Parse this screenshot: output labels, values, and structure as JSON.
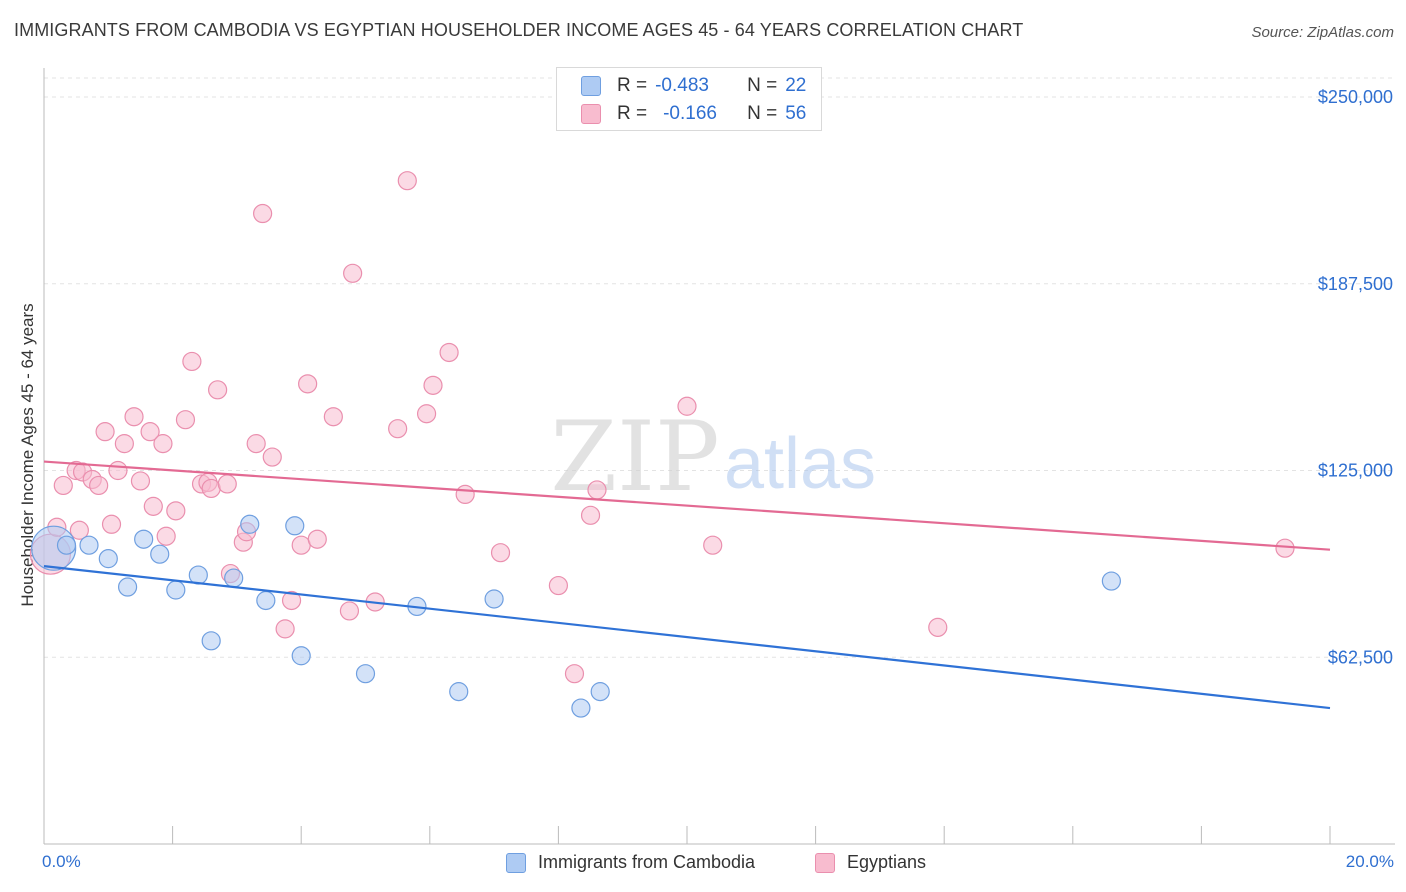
{
  "title": "IMMIGRANTS FROM CAMBODIA VS EGYPTIAN HOUSEHOLDER INCOME AGES 45 - 64 YEARS CORRELATION CHART",
  "source": "Source: ZipAtlas.com",
  "watermark": {
    "zip": "ZIP",
    "atlas": "atlas"
  },
  "legend_top": {
    "rows": [
      {
        "r_label": "R =",
        "r_value": "-0.483",
        "n_label": "N =",
        "n_value": "22"
      },
      {
        "r_label": "R =",
        "r_value": "-0.166",
        "n_label": "N =",
        "n_value": "56"
      }
    ]
  },
  "bottom_legend": {
    "series1": "Immigrants from Cambodia",
    "series2": "Egyptians"
  },
  "x_axis": {
    "min_label": "0.0%",
    "max_label": "20.0%"
  },
  "colors": {
    "cambodia_fill": "#aecbf3",
    "cambodia_stroke": "#6f9fe0",
    "cambodia_line": "#2f72d6",
    "egypt_fill": "#f8bccf",
    "egypt_stroke": "#ea8fae",
    "egypt_line": "#e36a93",
    "tick_text": "#2f6fd0"
  },
  "chart_data": {
    "type": "scatter",
    "title": "IMMIGRANTS FROM CAMBODIA VS EGYPTIAN HOUSEHOLDER INCOME AGES 45 - 64 YEARS CORRELATION CHART",
    "xlabel": "",
    "ylabel": "Householder Income Ages 45 - 64 years",
    "xlim": [
      0,
      20
    ],
    "ylim": [
      0,
      262000
    ],
    "y_ticks": [
      62500,
      125000,
      187500,
      250000
    ],
    "y_tick_labels": [
      "$62,500",
      "$125,000",
      "$187,500",
      "$250,000"
    ],
    "grid": true,
    "series": [
      {
        "name": "Immigrants from Cambodia",
        "r": -0.483,
        "n": 22,
        "trend": {
          "x": [
            0,
            20
          ],
          "y": [
            93000,
            45500
          ]
        },
        "points": [
          {
            "x": 0.15,
            "y": 99000,
            "s": 22
          },
          {
            "x": 0.35,
            "y": 100000
          },
          {
            "x": 0.7,
            "y": 100000
          },
          {
            "x": 1.0,
            "y": 95500
          },
          {
            "x": 1.3,
            "y": 86000
          },
          {
            "x": 1.55,
            "y": 102000
          },
          {
            "x": 1.8,
            "y": 97000
          },
          {
            "x": 2.05,
            "y": 85000
          },
          {
            "x": 2.4,
            "y": 90000
          },
          {
            "x": 2.6,
            "y": 68000
          },
          {
            "x": 2.95,
            "y": 89000
          },
          {
            "x": 3.2,
            "y": 107000
          },
          {
            "x": 3.45,
            "y": 81500
          },
          {
            "x": 3.9,
            "y": 106500
          },
          {
            "x": 4.0,
            "y": 63000
          },
          {
            "x": 5.0,
            "y": 57000
          },
          {
            "x": 5.8,
            "y": 79500
          },
          {
            "x": 6.45,
            "y": 51000
          },
          {
            "x": 7.0,
            "y": 82000
          },
          {
            "x": 8.35,
            "y": 45500
          },
          {
            "x": 8.65,
            "y": 51000
          },
          {
            "x": 16.6,
            "y": 88000
          }
        ]
      },
      {
        "name": "Egyptians",
        "r": -0.166,
        "n": 56,
        "trend": {
          "x": [
            0,
            20
          ],
          "y": [
            128000,
            98500
          ]
        },
        "points": [
          {
            "x": 0.1,
            "y": 97000,
            "s": 20
          },
          {
            "x": 0.2,
            "y": 106000
          },
          {
            "x": 0.3,
            "y": 120000
          },
          {
            "x": 0.5,
            "y": 125000
          },
          {
            "x": 0.55,
            "y": 105000
          },
          {
            "x": 0.6,
            "y": 124500
          },
          {
            "x": 0.75,
            "y": 122000
          },
          {
            "x": 0.85,
            "y": 120000
          },
          {
            "x": 0.95,
            "y": 138000
          },
          {
            "x": 1.05,
            "y": 107000
          },
          {
            "x": 1.15,
            "y": 125000
          },
          {
            "x": 1.25,
            "y": 134000
          },
          {
            "x": 1.4,
            "y": 143000
          },
          {
            "x": 1.5,
            "y": 121500
          },
          {
            "x": 1.65,
            "y": 138000
          },
          {
            "x": 1.7,
            "y": 113000
          },
          {
            "x": 1.85,
            "y": 134000
          },
          {
            "x": 1.9,
            "y": 103000
          },
          {
            "x": 2.05,
            "y": 111500
          },
          {
            "x": 2.2,
            "y": 142000
          },
          {
            "x": 2.3,
            "y": 161500
          },
          {
            "x": 2.45,
            "y": 120500
          },
          {
            "x": 2.55,
            "y": 121000
          },
          {
            "x": 2.6,
            "y": 119000
          },
          {
            "x": 2.7,
            "y": 152000
          },
          {
            "x": 2.85,
            "y": 120500
          },
          {
            "x": 2.9,
            "y": 90500
          },
          {
            "x": 3.1,
            "y": 101000
          },
          {
            "x": 3.15,
            "y": 104500
          },
          {
            "x": 3.3,
            "y": 134000
          },
          {
            "x": 3.4,
            "y": 211000
          },
          {
            "x": 3.55,
            "y": 129500
          },
          {
            "x": 3.75,
            "y": 72000
          },
          {
            "x": 3.85,
            "y": 81500
          },
          {
            "x": 4.0,
            "y": 100000
          },
          {
            "x": 4.1,
            "y": 154000
          },
          {
            "x": 4.25,
            "y": 102000
          },
          {
            "x": 4.5,
            "y": 143000
          },
          {
            "x": 4.75,
            "y": 78000
          },
          {
            "x": 4.8,
            "y": 191000
          },
          {
            "x": 5.15,
            "y": 81000
          },
          {
            "x": 5.5,
            "y": 139000
          },
          {
            "x": 5.65,
            "y": 222000
          },
          {
            "x": 5.95,
            "y": 144000
          },
          {
            "x": 6.05,
            "y": 153500
          },
          {
            "x": 6.3,
            "y": 164500
          },
          {
            "x": 6.55,
            "y": 117000
          },
          {
            "x": 7.1,
            "y": 97500
          },
          {
            "x": 8.0,
            "y": 86500
          },
          {
            "x": 8.25,
            "y": 57000
          },
          {
            "x": 8.5,
            "y": 110000
          },
          {
            "x": 8.6,
            "y": 118500
          },
          {
            "x": 10.0,
            "y": 146500
          },
          {
            "x": 10.4,
            "y": 100000
          },
          {
            "x": 13.9,
            "y": 72500
          },
          {
            "x": 19.3,
            "y": 99000
          }
        ]
      }
    ]
  }
}
